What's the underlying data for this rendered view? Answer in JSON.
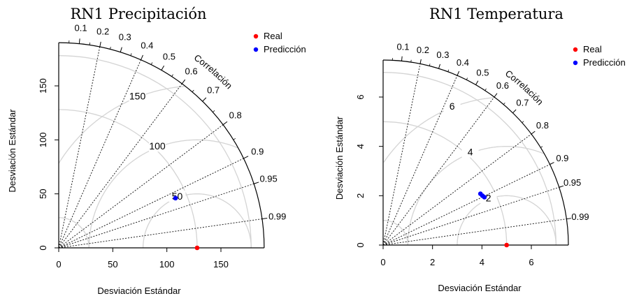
{
  "chart_data": [
    {
      "type": "scatter",
      "subtype": "taylor-diagram",
      "title": "RN1 Precipitación",
      "xlabel": "Desviación Estándar",
      "ylabel": "Desviación Estándar",
      "radial_label": "Correlación",
      "sd_max": 190,
      "sd_ticks": [
        0,
        50,
        100,
        150
      ],
      "corr_ticks": [
        "0.1",
        "0.2",
        "0.3",
        "0.4",
        "0.5",
        "0.6",
        "0.7",
        "0.8",
        "0.9",
        "0.95",
        "0.99"
      ],
      "corr_lines": [
        0.2,
        0.4,
        0.6,
        0.8,
        0.9,
        0.95,
        0.99
      ],
      "sd_arcs": [
        28,
        128,
        178
      ],
      "rms_center": 128,
      "rms_arcs": [
        50,
        100,
        150
      ],
      "rms_labels": [
        "50",
        "100",
        "150"
      ],
      "legend": [
        "Real",
        "Predicción"
      ],
      "series": [
        {
          "name": "Real",
          "color": "#ff0000",
          "points": [
            {
              "x": 128,
              "y": 0
            }
          ]
        },
        {
          "name": "Predicción",
          "color": "#0000ff",
          "points": [
            {
              "x": 108,
              "y": 46
            }
          ]
        }
      ]
    },
    {
      "type": "scatter",
      "subtype": "taylor-diagram",
      "title": "RN1 Temperatura",
      "xlabel": "Desviación Estándar",
      "ylabel": "Desviación Estándar",
      "radial_label": "Correlación",
      "sd_max": 7.5,
      "sd_ticks": [
        0,
        2,
        4,
        6
      ],
      "corr_ticks": [
        "0.1",
        "0.2",
        "0.3",
        "0.4",
        "0.5",
        "0.6",
        "0.7",
        "0.8",
        "0.9",
        "0.95",
        "0.99"
      ],
      "corr_lines": [
        0.2,
        0.4,
        0.6,
        0.8,
        0.9,
        0.95,
        0.99
      ],
      "sd_arcs": [
        1,
        5,
        7
      ],
      "rms_center": 5,
      "rms_arcs": [
        2,
        4,
        6
      ],
      "rms_labels": [
        "2",
        "4",
        "6"
      ],
      "legend": [
        "Real",
        "Predicción"
      ],
      "series": [
        {
          "name": "Real",
          "color": "#ff0000",
          "points": [
            {
              "x": 5,
              "y": 0
            }
          ]
        },
        {
          "name": "Predicción",
          "color": "#0000ff",
          "points": [
            {
              "x": 3.94,
              "y": 2.08
            },
            {
              "x": 4.02,
              "y": 2.0
            },
            {
              "x": 4.1,
              "y": 1.94
            }
          ]
        }
      ]
    }
  ]
}
